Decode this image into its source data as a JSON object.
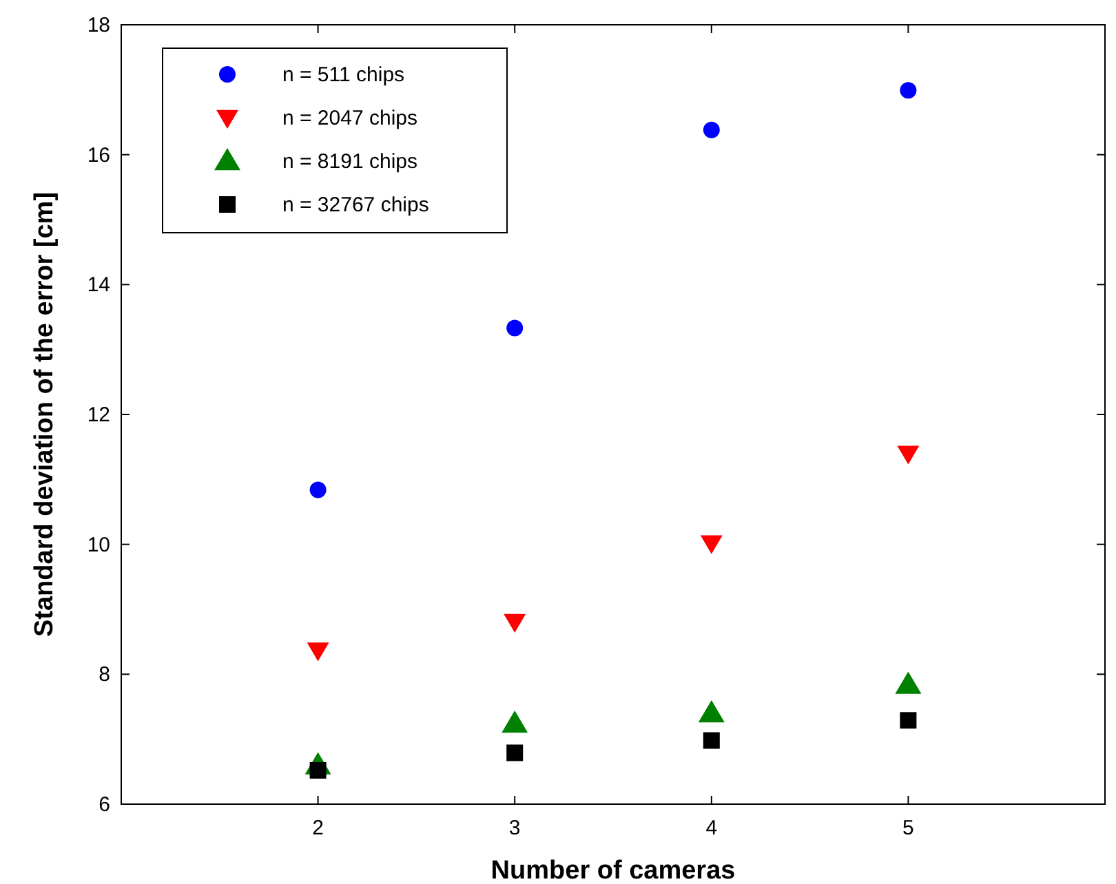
{
  "chart_data": {
    "type": "scatter",
    "xlabel": "Number of cameras",
    "ylabel": "Standard deviation of the error [cm]",
    "x": [
      2,
      3,
      4,
      5
    ],
    "xlim": [
      1,
      6
    ],
    "xticks": [
      2,
      3,
      4,
      5
    ],
    "ylim": [
      6,
      18
    ],
    "yticks": [
      6,
      8,
      10,
      12,
      14,
      16,
      18
    ],
    "grid": false,
    "legend": "top left",
    "series": [
      {
        "name": "n = 511 chips",
        "color": "#0000ff",
        "marker": "circle",
        "values": [
          10.84,
          13.33,
          16.38,
          16.99
        ]
      },
      {
        "name": "n = 2047 chips",
        "color": "#ff0000",
        "marker": "triangle-down",
        "values": [
          8.37,
          8.81,
          10.02,
          11.4
        ]
      },
      {
        "name": "n = 8191 chips",
        "color": "#008000",
        "marker": "triangle",
        "values": [
          6.6,
          7.24,
          7.4,
          7.84
        ]
      },
      {
        "name": "n = 32767 chips",
        "color": "#000000",
        "marker": "square",
        "values": [
          6.52,
          6.79,
          6.98,
          7.29
        ]
      }
    ]
  }
}
